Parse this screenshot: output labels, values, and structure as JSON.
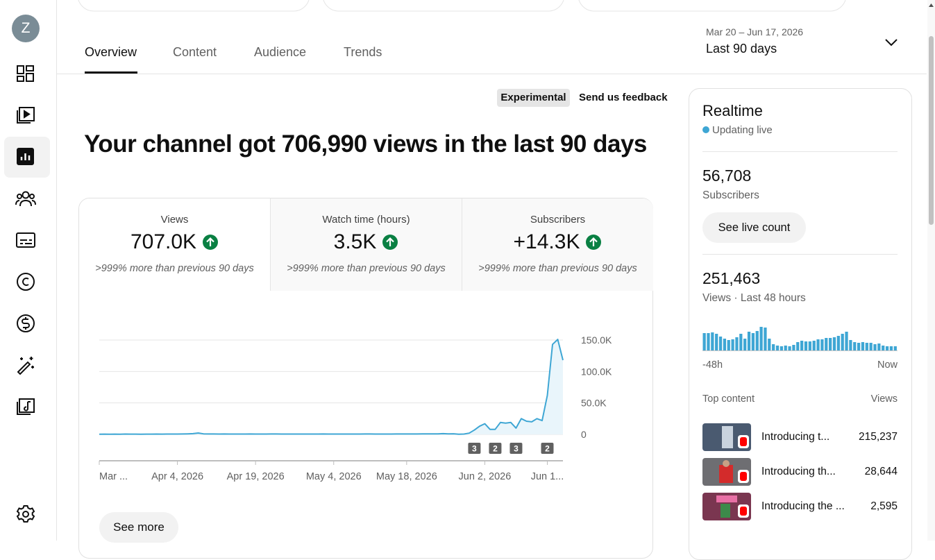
{
  "avatar": "Z",
  "tabs": [
    "Overview",
    "Content",
    "Audience",
    "Trends"
  ],
  "date_range": {
    "dates": "Mar 20 – Jun 17, 2026",
    "period": "Last 90 days"
  },
  "badge": "Experimental",
  "feedback": "Send us feedback",
  "headline": "Your channel got 706,990 views in the last 90 days",
  "metrics": [
    {
      "title": "Views",
      "value": "707.0K",
      "change": ">999% more than previous 90 days"
    },
    {
      "title": "Watch time (hours)",
      "value": "3.5K",
      "change": ">999% more than previous 90 days"
    },
    {
      "title": "Subscribers",
      "value": "+14.3K",
      "change": ">999% more than previous 90 days"
    }
  ],
  "see_more": "See more",
  "realtime": {
    "title": "Realtime",
    "status": "Updating live",
    "subscribers": {
      "value": "56,708",
      "label": "Subscribers"
    },
    "live_count_button": "See live count",
    "views": {
      "value": "251,463",
      "label": "Views · Last 48 hours"
    },
    "top_content": {
      "header": "Top content",
      "views_header": "Views",
      "items": [
        {
          "title": "Introducing t...",
          "views": "215,237"
        },
        {
          "title": "Introducing th...",
          "views": "28,644"
        },
        {
          "title": "Introducing the ...",
          "views": "2,595"
        }
      ]
    }
  },
  "chart_data": [
    {
      "type": "line",
      "color": "#3ea6d4",
      "area_color": "#e9f5fb",
      "grid": true,
      "ylim": [
        0,
        150000
      ],
      "yticks": [
        0,
        {
          "value": 50000,
          "label": "50.0K"
        },
        {
          "value": 100000,
          "label": "100.0K"
        },
        {
          "value": 150000,
          "label": "150.0K"
        }
      ],
      "categories": [
        "Mar ...",
        null,
        null,
        null,
        null,
        null,
        null,
        null,
        null,
        null,
        null,
        null,
        null,
        null,
        null,
        "Apr 4, 2026",
        null,
        null,
        null,
        null,
        null,
        null,
        null,
        null,
        null,
        null,
        null,
        null,
        null,
        null,
        "Apr 19, 2026",
        null,
        null,
        null,
        null,
        null,
        null,
        null,
        null,
        null,
        null,
        null,
        null,
        null,
        null,
        "May 4, 2026",
        null,
        null,
        null,
        null,
        null,
        null,
        null,
        null,
        null,
        null,
        null,
        null,
        null,
        "May 18, 2026",
        null,
        null,
        null,
        null,
        null,
        null,
        null,
        null,
        null,
        null,
        null,
        null,
        null,
        null,
        "Jun 2, 2026",
        null,
        null,
        null,
        null,
        null,
        null,
        null,
        null,
        null,
        null,
        null,
        "Jun 1...",
        null,
        null,
        null
      ],
      "values": [
        300,
        400,
        350,
        420,
        380,
        500,
        450,
        400,
        380,
        420,
        450,
        500,
        480,
        520,
        600,
        550,
        700,
        900,
        1200,
        2200,
        900,
        700,
        650,
        600,
        620,
        580,
        560,
        540,
        600,
        620,
        580,
        560,
        600,
        640,
        620,
        600,
        580,
        560,
        540,
        520,
        560,
        580,
        600,
        620,
        600,
        580,
        560,
        540,
        560,
        580,
        600,
        620,
        640,
        600,
        580,
        560,
        600,
        620,
        640,
        660,
        700,
        680,
        720,
        760,
        800,
        900,
        1200,
        800,
        1000,
        300,
        500,
        2000,
        7000,
        13000,
        17000,
        8000,
        8000,
        19000,
        18000,
        19000,
        10000,
        25000,
        21000,
        20000,
        25000,
        22000,
        62000,
        143000,
        151000,
        118000
      ],
      "annotations": [
        null,
        null,
        null,
        null,
        null,
        null,
        null,
        null,
        null,
        null,
        null,
        null,
        null,
        null,
        null,
        null,
        null,
        null,
        null,
        null,
        null,
        null,
        null,
        null,
        null,
        null,
        null,
        null,
        null,
        null,
        null,
        null,
        null,
        null,
        null,
        null,
        null,
        null,
        null,
        null,
        null,
        null,
        null,
        null,
        null,
        null,
        null,
        null,
        null,
        null,
        null,
        null,
        null,
        null,
        null,
        null,
        null,
        null,
        null,
        null,
        null,
        null,
        null,
        null,
        null,
        null,
        null,
        null,
        null,
        null,
        null,
        null,
        3,
        null,
        null,
        null,
        2,
        null,
        null,
        null,
        3,
        null,
        null,
        null,
        null,
        null,
        2,
        null,
        null,
        null
      ]
    },
    {
      "type": "bar",
      "color": "#3ea6d4",
      "ylim": [
        0,
        10500
      ],
      "categories": [
        "-48h",
        null,
        null,
        null,
        null,
        null,
        null,
        null,
        null,
        null,
        null,
        null,
        null,
        null,
        null,
        null,
        null,
        null,
        null,
        null,
        null,
        null,
        null,
        null,
        null,
        null,
        null,
        null,
        null,
        null,
        null,
        null,
        null,
        null,
        null,
        null,
        null,
        null,
        null,
        null,
        null,
        null,
        null,
        null,
        null,
        null,
        null,
        "Now"
      ],
      "values": [
        7500,
        7500,
        7800,
        7200,
        6000,
        5100,
        4500,
        4800,
        5700,
        7200,
        5100,
        8100,
        7500,
        8400,
        10200,
        9900,
        5100,
        2700,
        2100,
        1800,
        2100,
        1800,
        2400,
        3600,
        4200,
        3900,
        3900,
        4200,
        4800,
        4800,
        5400,
        5400,
        5700,
        6300,
        7200,
        8100,
        4500,
        3600,
        3300,
        3600,
        3300,
        3300,
        2700,
        3000,
        2100,
        1800,
        1800,
        1800
      ]
    }
  ]
}
